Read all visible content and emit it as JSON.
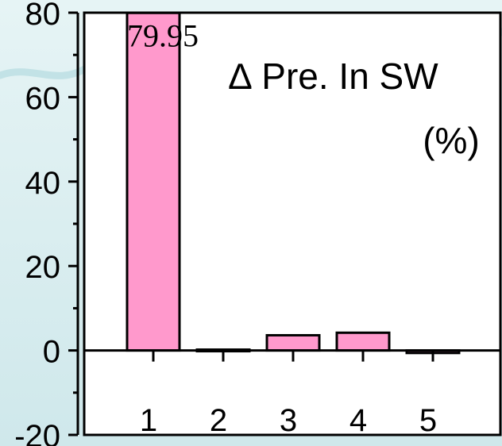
{
  "chart_data": {
    "type": "bar",
    "title": "∆ Pre. In SW",
    "subtitle": "(%)",
    "categories": [
      "1",
      "2",
      "3",
      "4",
      "5"
    ],
    "values": [
      79.95,
      0.2,
      3.6,
      4.2,
      -0.6
    ],
    "data_labels": [
      "79.95",
      "",
      "",
      "",
      ""
    ],
    "y_ticks": [
      "80",
      "60",
      "40",
      "20",
      "0",
      "-20"
    ],
    "ylim": [
      -20,
      80
    ],
    "xlabel": "",
    "ylabel": "",
    "grid": false,
    "legend": "none",
    "colors": {
      "bar_fill": "#ff99cc",
      "bar_stroke": "#000000",
      "plot_background": "#ffffff",
      "page_background": "#d9eef0",
      "watermark": "#9fd3d8"
    }
  }
}
